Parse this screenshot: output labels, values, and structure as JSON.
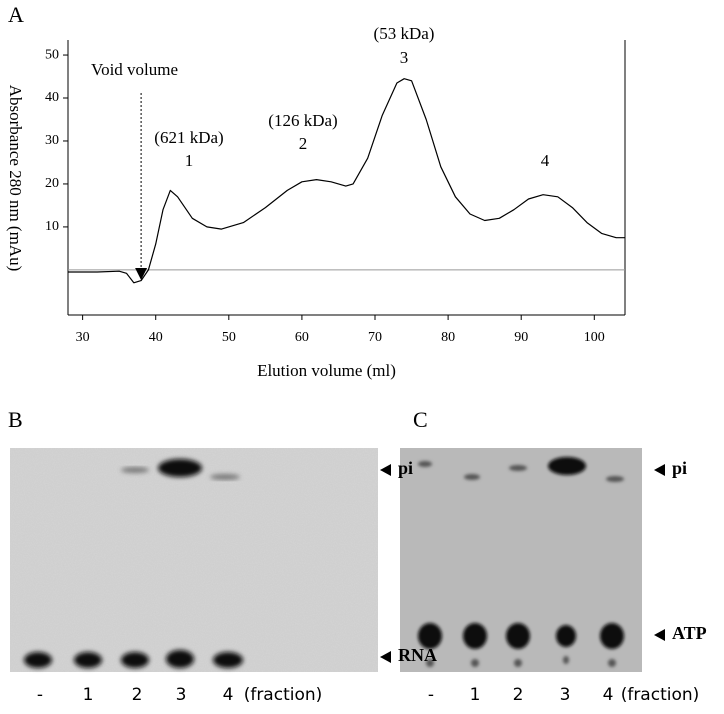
{
  "chart_data": {
    "type": "line",
    "panel": "A",
    "x_label": "Elution volume (ml)",
    "y_label": "Absorbance 280 nm (mAu)",
    "x": [
      28,
      32,
      35,
      36,
      37,
      38,
      39,
      40,
      41,
      42,
      43,
      45,
      47,
      49,
      52,
      55,
      58,
      60,
      62,
      64,
      66,
      67,
      69,
      71,
      73,
      74,
      75,
      77,
      79,
      81,
      83,
      85,
      87,
      89,
      91,
      93,
      95,
      97,
      99,
      101,
      103,
      104.2
    ],
    "values": [
      -0.5,
      -0.5,
      -0.3,
      -0.8,
      -3,
      -2.5,
      0,
      6,
      14,
      18.5,
      17,
      12,
      10,
      9.5,
      11,
      14.5,
      18.5,
      20.5,
      21,
      20.5,
      19.5,
      20,
      26,
      36,
      43.5,
      44.5,
      44,
      35,
      24,
      17,
      13,
      11.5,
      12,
      14,
      16.5,
      17.5,
      17,
      14.5,
      11,
      8.5,
      7.5,
      7.5
    ],
    "color": "#000000",
    "xlim": [
      28,
      104.2
    ],
    "ylim": [
      -10.5,
      53.5
    ],
    "xticks": [
      30,
      40,
      50,
      60,
      70,
      80,
      90,
      100
    ],
    "yticks": [
      10,
      20,
      30,
      40,
      50
    ],
    "baseline": 0,
    "void_volume": {
      "label": "Void volume",
      "x": 38
    },
    "peaks": [
      {
        "mass": "(621 kDa)",
        "number": "1"
      },
      {
        "mass": "(126 kDa)",
        "number": "2"
      },
      {
        "mass": "(53 kDa)",
        "number": "3"
      },
      {
        "number": "4"
      }
    ]
  },
  "gels": [
    {
      "panel": "B",
      "lanes": [
        "-",
        "1",
        "2",
        "3",
        "4"
      ],
      "lane_note": "(fraction)",
      "bands": [
        "pi",
        "RNA"
      ]
    },
    {
      "panel": "C",
      "lanes": [
        "-",
        "1",
        "2",
        "3",
        "4"
      ],
      "lane_note": "(fraction)",
      "bands": [
        "pi",
        "ATP"
      ]
    }
  ]
}
